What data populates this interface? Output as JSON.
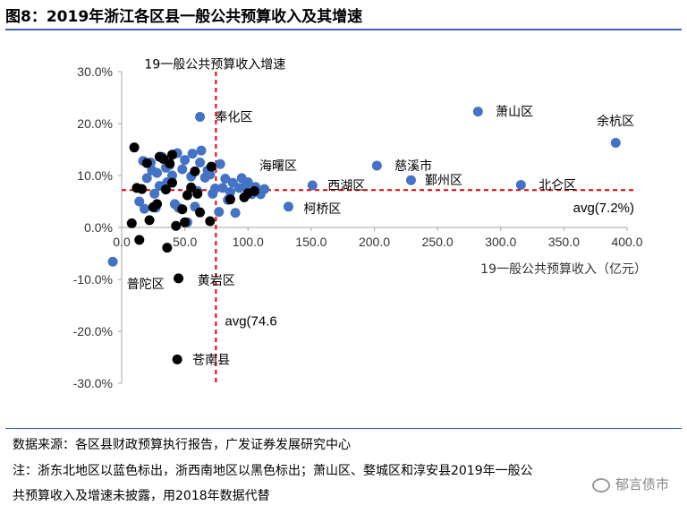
{
  "figure": {
    "title": "图8：2019年浙江各区县一般公共预算收入及其增速"
  },
  "notes": {
    "source": "数据来源：各区县财政预算执行报告，广发证券发展研究中心",
    "note_line1": "注：浙东北地区以蓝色标出，浙西南地区以黑色标出；萧山区、婺城区和淳安县2019年一般公",
    "note_line2": "共预算收入及增速未披露，用2018年数据代替"
  },
  "watermark": {
    "text": "郁言债市",
    "icon": "wechat-icon"
  },
  "chart_data": {
    "type": "scatter",
    "title": "",
    "xlabel": "19一般公共预算收入（亿元）",
    "ylabel": "19一般公共预算收入增速",
    "xlim": [
      0,
      400
    ],
    "ylim": [
      -30,
      30
    ],
    "xticks": [
      "0.0",
      "50.0",
      "100.0",
      "150.0",
      "200.0",
      "250.0",
      "300.0",
      "350.0",
      "400.0"
    ],
    "yticks": [
      "30.0%",
      "20.0%",
      "10.0%",
      "0.0%",
      "-10.0%",
      "-20.0%",
      "-30.0%"
    ],
    "grid": false,
    "colors": {
      "blue": "#4472c4",
      "black": "#000000",
      "avg_line": "#e00000"
    },
    "avg_x": {
      "value": 74.6,
      "label": "avg(74.6"
    },
    "avg_y": {
      "value": 7.2,
      "label": "avg(7.2%)"
    },
    "series": [
      {
        "group": "blue",
        "points": [
          [
            62,
            21.3
          ],
          [
            282,
            22.3
          ],
          [
            391,
            16.3
          ],
          [
            202,
            11.9
          ],
          [
            229,
            9.1
          ],
          [
            316,
            8.2
          ],
          [
            151,
            8.1
          ],
          [
            132,
            4.0
          ],
          [
            113,
            7.4
          ],
          [
            -7,
            -6.6
          ],
          [
            17,
            12.8
          ],
          [
            20,
            9.5
          ],
          [
            23,
            12.5
          ],
          [
            24,
            11.0
          ],
          [
            26,
            6.5
          ],
          [
            27,
            3.8
          ],
          [
            28,
            10.5
          ],
          [
            30,
            8.0
          ],
          [
            32,
            13.6
          ],
          [
            35,
            11.5
          ],
          [
            36,
            8.7
          ],
          [
            38,
            12.0
          ],
          [
            40,
            10.0
          ],
          [
            42,
            4.5
          ],
          [
            44,
            14.3
          ],
          [
            45,
            3.8
          ],
          [
            48,
            11.2
          ],
          [
            50,
            13.0
          ],
          [
            52,
            1.0
          ],
          [
            55,
            9.8
          ],
          [
            56,
            14.2
          ],
          [
            58,
            4.0
          ],
          [
            60,
            7.0
          ],
          [
            62,
            12.5
          ],
          [
            63,
            14.8
          ],
          [
            66,
            9.6
          ],
          [
            68,
            11.0
          ],
          [
            70,
            10.2
          ],
          [
            72,
            6.5
          ],
          [
            74,
            7.5
          ],
          [
            77,
            3.0
          ],
          [
            78,
            12.2
          ],
          [
            80,
            7.6
          ],
          [
            82,
            9.4
          ],
          [
            84,
            5.3
          ],
          [
            86,
            6.8
          ],
          [
            88,
            8.6
          ],
          [
            90,
            2.8
          ],
          [
            93,
            7.6
          ],
          [
            95,
            9.5
          ],
          [
            98,
            7.9
          ],
          [
            100,
            8.7
          ],
          [
            103,
            6.4
          ],
          [
            106,
            7.8
          ],
          [
            110,
            6.4
          ],
          [
            14,
            5.0
          ],
          [
            18,
            3.6
          ]
        ]
      },
      {
        "group": "black",
        "points": [
          [
            10,
            15.4
          ],
          [
            8,
            0.8
          ],
          [
            12,
            7.6
          ],
          [
            16,
            7.4
          ],
          [
            14,
            -2.4
          ],
          [
            20,
            12.4
          ],
          [
            22,
            1.4
          ],
          [
            25,
            3.9
          ],
          [
            28,
            4.5
          ],
          [
            30,
            13.6
          ],
          [
            33,
            13.2
          ],
          [
            35,
            7.3
          ],
          [
            36,
            -3.9
          ],
          [
            38,
            12.3
          ],
          [
            40,
            14.0
          ],
          [
            40,
            8.6
          ],
          [
            43,
            0.3
          ],
          [
            45,
            -9.8
          ],
          [
            48,
            3.5
          ],
          [
            50,
            1.0
          ],
          [
            52,
            6.2
          ],
          [
            55,
            7.7
          ],
          [
            60,
            6.5
          ],
          [
            62,
            2.9
          ],
          [
            70,
            1.2
          ],
          [
            71,
            11.7
          ],
          [
            86,
            5.4
          ],
          [
            97,
            5.8
          ],
          [
            44,
            -25.4
          ],
          [
            100,
            6.6
          ],
          [
            105,
            7.0
          ],
          [
            58,
            10.8
          ]
        ]
      }
    ],
    "annotations": [
      {
        "text": "19一般公共预算收入增速",
        "x": 18,
        "y": 31.5
      },
      {
        "text": "奉化区",
        "x": 74,
        "y": 21.3
      },
      {
        "text": "萧山区",
        "x": 296,
        "y": 22.3
      },
      {
        "text": "余杭区",
        "x": 376,
        "y": 20.5
      },
      {
        "text": "海曙区",
        "x": 109,
        "y": 11.9
      },
      {
        "text": "慈溪市",
        "x": 216,
        "y": 11.9
      },
      {
        "text": "西湖区",
        "x": 163,
        "y": 8.1
      },
      {
        "text": "鄞州区",
        "x": 240,
        "y": 9.1
      },
      {
        "text": "北仑区",
        "x": 330,
        "y": 8.2
      },
      {
        "text": "柯桥区",
        "x": 144,
        "y": 3.6
      },
      {
        "text": "普陀区",
        "x": 4,
        "y": -10.9
      },
      {
        "text": "黄岩区",
        "x": 60,
        "y": -10.2
      },
      {
        "text": "苍南县",
        "x": 56,
        "y": -25.4
      }
    ]
  }
}
